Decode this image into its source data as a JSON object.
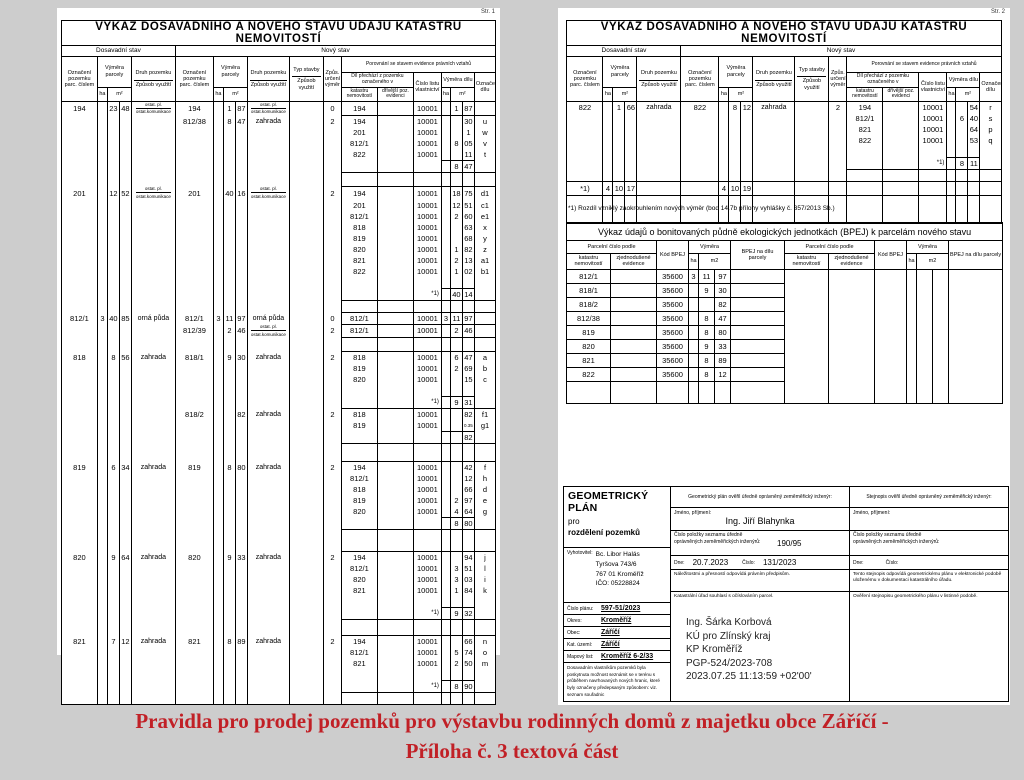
{
  "background": "#cdcdcd",
  "vh": {
    "title": "VÝKAZ DOSAVADNÍHO A NOVÉHO STAVU ÚDAJŮ KATASTRU NEMOVITOSTÍ",
    "dosavadni": "Dosavadní stav",
    "novy": "Nový stav",
    "ozn_parc": "Označení pozemku parc. číslem",
    "vymera_parcely": "Výměra parcely",
    "druh_pozemku": "Druh pozemku",
    "zpusob_vyuziti": "Způsob využití",
    "typ_stavby": "Typ stavby",
    "zpus_urceni": "Způs. určení výměr",
    "porovnani": "Porovnání se stavem evidence právních vztahů",
    "dil_prechazi": "Díl přechází z pozemku označeného v",
    "katastru": "katastru nemovitostí",
    "drivejsi": "dřívější poz. evidenci",
    "cislo_listu": "Číslo listu vlastnictví",
    "vymera_dilu": "Výměra dílu",
    "oznaceni_dilu": "Označení dílu",
    "ha": "ha",
    "m2": "m²"
  },
  "page1": {
    "page_label": "Str. 1",
    "filler": 8,
    "groups": [
      {
        "old": {
          "p": "194",
          "ha": "",
          "m2a": "23",
          "m2b": "48",
          "druh": "ostat. pl.",
          "druh2": "ostat.komunikace"
        },
        "subs": [
          {
            "p": "194",
            "ha": "",
            "m2a": "1",
            "m2b": "87",
            "druh": "ostat. pl.",
            "druh2": "ostat.komunikace",
            "typ": "",
            "zpus": "0",
            "dily": [
              {
                "kn": "194",
                "de": "",
                "lv": "10001",
                "ha": "",
                "m2a": "1",
                "m2b": "87",
                "ozn": ""
              }
            ],
            "sum": null
          },
          {
            "p": "812/38",
            "ha": "",
            "m2a": "8",
            "m2b": "47",
            "druh": "zahrada",
            "druh2": "",
            "typ": "",
            "zpus": "2",
            "dily": [
              {
                "kn": "194",
                "de": "",
                "lv": "10001",
                "ha": "",
                "m2a": "",
                "m2b": "30",
                "ozn": "u"
              },
              {
                "kn": "201",
                "de": "",
                "lv": "10001",
                "ha": "",
                "m2a": "",
                "m2b": "1",
                "ozn": "w"
              },
              {
                "kn": "812/1",
                "de": "",
                "lv": "10001",
                "ha": "",
                "m2a": "8",
                "m2b": "05",
                "ozn": "v"
              },
              {
                "kn": "822",
                "de": "",
                "lv": "10001",
                "ha": "",
                "m2a": "",
                "m2b": "11",
                "ozn": "t"
              }
            ],
            "sum": {
              "label": "",
              "ha": "",
              "m2a": "8",
              "m2b": "47"
            }
          }
        ],
        "gap_after": 14
      },
      {
        "old": {
          "p": "201",
          "ha": "",
          "m2a": "12",
          "m2b": "52",
          "druh": "ostat. pl.",
          "druh2": "ostat.komunikace"
        },
        "subs": [
          {
            "p": "201",
            "ha": "",
            "m2a": "40",
            "m2b": "16",
            "druh": "ostat. pl.",
            "druh2": "ostat.komunikace",
            "typ": "",
            "zpus": "2",
            "dily": [
              {
                "kn": "194",
                "de": "",
                "lv": "10001",
                "ha": "",
                "m2a": "18",
                "m2b": "75",
                "ozn": "d1"
              },
              {
                "kn": "201",
                "de": "",
                "lv": "10001",
                "ha": "",
                "m2a": "12",
                "m2b": "51",
                "ozn": "c1"
              },
              {
                "kn": "812/1",
                "de": "",
                "lv": "10001",
                "ha": "",
                "m2a": "2",
                "m2b": "60",
                "ozn": "e1"
              },
              {
                "kn": "818",
                "de": "",
                "lv": "10001",
                "ha": "",
                "m2a": "",
                "m2b": "63",
                "ozn": "x"
              },
              {
                "kn": "819",
                "de": "",
                "lv": "10001",
                "ha": "",
                "m2a": "",
                "m2b": "68",
                "ozn": "y"
              },
              {
                "kn": "820",
                "de": "",
                "lv": "10001",
                "ha": "",
                "m2a": "1",
                "m2b": "82",
                "ozn": "z"
              },
              {
                "kn": "821",
                "de": "",
                "lv": "10001",
                "ha": "",
                "m2a": "2",
                "m2b": "13",
                "ozn": "a1"
              },
              {
                "kn": "822",
                "de": "",
                "lv": "10001",
                "ha": "",
                "m2a": "1",
                "m2b": "02",
                "ozn": "b1"
              }
            ],
            "sum": {
              "label": "*1)",
              "ha": "",
              "m2a": "40",
              "m2b": "14"
            }
          }
        ],
        "gap_after": 10
      },
      {
        "old": {
          "p": "812/1",
          "ha": "3",
          "m2a": "40",
          "m2b": "85",
          "druh": "orná půda",
          "druh2": ""
        },
        "subs": [
          {
            "p": "812/1",
            "ha": "3",
            "m2a": "11",
            "m2b": "97",
            "druh": "orná půda",
            "druh2": "",
            "typ": "",
            "zpus": "0",
            "dily": [
              {
                "kn": "812/1",
                "de": "",
                "lv": "10001",
                "ha": "3",
                "m2a": "11",
                "m2b": "97",
                "ozn": ""
              }
            ],
            "sum": null
          },
          {
            "p": "812/39",
            "ha": "",
            "m2a": "2",
            "m2b": "46",
            "druh": "ostat. pl.",
            "druh2": "ostat.komunikace",
            "typ": "",
            "zpus": "2",
            "dily": [
              {
                "kn": "812/1",
                "de": "",
                "lv": "10001",
                "ha": "",
                "m2a": "2",
                "m2b": "46",
                "ozn": ""
              }
            ],
            "sum": null
          }
        ],
        "gap_after": 14
      },
      {
        "old": {
          "p": "818",
          "ha": "",
          "m2a": "8",
          "m2b": "56",
          "druh": "zahrada",
          "druh2": ""
        },
        "subs": [
          {
            "p": "818/1",
            "ha": "",
            "m2a": "9",
            "m2b": "30",
            "druh": "zahrada",
            "druh2": "",
            "typ": "",
            "zpus": "2",
            "dily": [
              {
                "kn": "818",
                "de": "",
                "lv": "10001",
                "ha": "",
                "m2a": "6",
                "m2b": "47",
                "ozn": "a"
              },
              {
                "kn": "819",
                "de": "",
                "lv": "10001",
                "ha": "",
                "m2a": "2",
                "m2b": "69",
                "ozn": "b"
              },
              {
                "kn": "820",
                "de": "",
                "lv": "10001",
                "ha": "",
                "m2a": "",
                "m2b": "15",
                "ozn": "c"
              }
            ],
            "sum": {
              "label": "*1)",
              "ha": "",
              "m2a": "9",
              "m2b": "31"
            }
          },
          {
            "p": "818/2",
            "ha": "",
            "m2a": "",
            "m2b": "82",
            "druh": "zahrada",
            "druh2": "",
            "typ": "",
            "zpus": "2",
            "dily": [
              {
                "kn": "818",
                "de": "",
                "lv": "10001",
                "ha": "",
                "m2a": "",
                "m2b": "82",
                "ozn": "f1"
              },
              {
                "kn": "819",
                "de": "",
                "lv": "10001",
                "ha": "",
                "m2a": "",
                "m2b": "0.35",
                "ozn": "g1"
              }
            ],
            "sum": {
              "label": "",
              "ha": "",
              "m2a": "",
              "m2b": "82"
            }
          }
        ],
        "gap_after": 18
      },
      {
        "old": {
          "p": "819",
          "ha": "",
          "m2a": "6",
          "m2b": "34",
          "druh": "zahrada",
          "druh2": ""
        },
        "subs": [
          {
            "p": "819",
            "ha": "",
            "m2a": "8",
            "m2b": "80",
            "druh": "zahrada",
            "druh2": "",
            "typ": "",
            "zpus": "2",
            "dily": [
              {
                "kn": "194",
                "de": "",
                "lv": "10001",
                "ha": "",
                "m2a": "",
                "m2b": "42",
                "ozn": "f"
              },
              {
                "kn": "812/1",
                "de": "",
                "lv": "10001",
                "ha": "",
                "m2a": "",
                "m2b": "12",
                "ozn": "h"
              },
              {
                "kn": "818",
                "de": "",
                "lv": "10001",
                "ha": "",
                "m2a": "",
                "m2b": "66",
                "ozn": "d"
              },
              {
                "kn": "819",
                "de": "",
                "lv": "10001",
                "ha": "",
                "m2a": "2",
                "m2b": "97",
                "ozn": "e"
              },
              {
                "kn": "820",
                "de": "",
                "lv": "10001",
                "ha": "",
                "m2a": "4",
                "m2b": "64",
                "ozn": "g"
              }
            ],
            "sum": {
              "label": "",
              "ha": "",
              "m2a": "8",
              "m2b": "80"
            }
          }
        ],
        "gap_after": 22
      },
      {
        "old": {
          "p": "820",
          "ha": "",
          "m2a": "9",
          "m2b": "64",
          "druh": "zahrada",
          "druh2": ""
        },
        "subs": [
          {
            "p": "820",
            "ha": "",
            "m2a": "9",
            "m2b": "33",
            "druh": "zahrada",
            "druh2": "",
            "typ": "",
            "zpus": "2",
            "dily": [
              {
                "kn": "194",
                "de": "",
                "lv": "10001",
                "ha": "",
                "m2a": "",
                "m2b": "94",
                "ozn": "j"
              },
              {
                "kn": "812/1",
                "de": "",
                "lv": "10001",
                "ha": "",
                "m2a": "3",
                "m2b": "51",
                "ozn": "l"
              },
              {
                "kn": "820",
                "de": "",
                "lv": "10001",
                "ha": "",
                "m2a": "3",
                "m2b": "03",
                "ozn": "i"
              },
              {
                "kn": "821",
                "de": "",
                "lv": "10001",
                "ha": "",
                "m2a": "1",
                "m2b": "84",
                "ozn": "k"
              }
            ],
            "sum": {
              "label": "*1)",
              "ha": "",
              "m2a": "9",
              "m2b": "32"
            }
          }
        ],
        "gap_after": 16
      },
      {
        "old": {
          "p": "821",
          "ha": "",
          "m2a": "7",
          "m2b": "12",
          "druh": "zahrada",
          "druh2": ""
        },
        "subs": [
          {
            "p": "821",
            "ha": "",
            "m2a": "8",
            "m2b": "89",
            "druh": "zahrada",
            "druh2": "",
            "typ": "",
            "zpus": "2",
            "dily": [
              {
                "kn": "194",
                "de": "",
                "lv": "10001",
                "ha": "",
                "m2a": "",
                "m2b": "66",
                "ozn": "n"
              },
              {
                "kn": "812/1",
                "de": "",
                "lv": "10001",
                "ha": "",
                "m2a": "5",
                "m2b": "74",
                "ozn": "o"
              },
              {
                "kn": "821",
                "de": "",
                "lv": "10001",
                "ha": "",
                "m2a": "2",
                "m2b": "50",
                "ozn": "m"
              }
            ],
            "sum": {
              "label": "*1)",
              "ha": "",
              "m2a": "8",
              "m2b": "90"
            }
          }
        ],
        "gap_after": 0
      }
    ]
  },
  "page2": {
    "page_label": "Str. 2",
    "filler": 28,
    "footnote": "*1) Rozdíl vzniklý zaokrouhlením nových výměr (bod 14.7b přílohy vyhlášky č. 357/2013 Sb.)",
    "groups": [
      {
        "old": {
          "p": "822",
          "ha": "",
          "m2a": "1",
          "m2b": "66",
          "druh": "zahrada",
          "druh2": ""
        },
        "subs": [
          {
            "p": "822",
            "ha": "",
            "m2a": "8",
            "m2b": "12",
            "druh": "zahrada",
            "druh2": "",
            "typ": "",
            "zpus": "2",
            "dily": [
              {
                "kn": "194",
                "de": "",
                "lv": "10001",
                "ha": "",
                "m2a": "",
                "m2b": "54",
                "ozn": "r"
              },
              {
                "kn": "812/1",
                "de": "",
                "lv": "10001",
                "ha": "",
                "m2a": "6",
                "m2b": "40",
                "ozn": "s"
              },
              {
                "kn": "821",
                "de": "",
                "lv": "10001",
                "ha": "",
                "m2a": "",
                "m2b": "64",
                "ozn": "p"
              },
              {
                "kn": "822",
                "de": "",
                "lv": "10001",
                "ha": "",
                "m2a": "",
                "m2b": "53",
                "ozn": "q"
              }
            ],
            "sum": {
              "label": "*1)",
              "ha": "",
              "m2a": "8",
              "m2b": "11"
            }
          }
        ],
        "gap_after": 4
      }
    ],
    "total": {
      "label": "*1)",
      "old": {
        "ha": "4",
        "m2a": "10",
        "m2b": "17"
      },
      "new": {
        "ha": "4",
        "m2a": "10",
        "m2b": "19"
      }
    }
  },
  "bpej": {
    "title": "Výkaz údajů o bonitovaných půdně ekologických jednotkách (BPEJ) k parcelám nového stavu",
    "parc_cislo": "Parcelní číslo podle",
    "katastru": "katastru nemovitostí",
    "zjednodusene": "zjednodušené evidence",
    "kod": "Kód BPEJ",
    "vymera": "Výměra",
    "ha": "ha",
    "m2": "m2",
    "bpej_dil": "BPEJ na dílu parcely",
    "rows": [
      {
        "kn": "812/1",
        "ze": "",
        "kod": "35600",
        "ha": "3",
        "m2a": "11",
        "m2b": "97",
        "bpej": ""
      },
      {
        "kn": "818/1",
        "ze": "",
        "kod": "35600",
        "ha": "",
        "m2a": "9",
        "m2b": "30",
        "bpej": ""
      },
      {
        "kn": "818/2",
        "ze": "",
        "kod": "35600",
        "ha": "",
        "m2a": "",
        "m2b": "82",
        "bpej": ""
      },
      {
        "kn": "812/38",
        "ze": "",
        "kod": "35600",
        "ha": "",
        "m2a": "8",
        "m2b": "47",
        "bpej": ""
      },
      {
        "kn": "819",
        "ze": "",
        "kod": "35600",
        "ha": "",
        "m2a": "8",
        "m2b": "80",
        "bpej": ""
      },
      {
        "kn": "820",
        "ze": "",
        "kod": "35600",
        "ha": "",
        "m2a": "9",
        "m2b": "33",
        "bpej": ""
      },
      {
        "kn": "821",
        "ze": "",
        "kod": "35600",
        "ha": "",
        "m2a": "8",
        "m2b": "89",
        "bpej": ""
      },
      {
        "kn": "822",
        "ze": "",
        "kod": "35600",
        "ha": "",
        "m2a": "8",
        "m2b": "12",
        "bpej": ""
      }
    ]
  },
  "gp": {
    "title1": "GEOMETRICKÝ PLÁN",
    "title2": "pro",
    "title3": "rozdělení pozemků",
    "vyhotovitel_label": "Vyhotovitel:",
    "vyhotovitel": [
      "Bc. Libor Halás",
      "Tyršova 743/6",
      "767 01 Kroměříž",
      "IČO: 05228824"
    ],
    "fields": [
      {
        "label": "Číslo plánu:",
        "value": "597-51/2023"
      },
      {
        "label": "Okres:",
        "value": "Kroměříž"
      },
      {
        "label": "Obec:",
        "value": "Záříčí"
      },
      {
        "label": "Kat. území:",
        "value": "Záříčí"
      },
      {
        "label": "Mapový list:",
        "value": "Kroměříž 6-2/33"
      }
    ],
    "note": "Dosavadním vlastníkům pozemků byla poskytnuta možnost seznámit se v terénu s průběhem navrhovaných nových hranic, které byly označeny předepsaným způsobem: viz. seznam souřadnic",
    "jmeno_label": "Jméno, příjmení:",
    "cislo_polozky_label": "Číslo položky seznamu úředně oprávněných zeměměřických inženýrů:",
    "dne_label": "Dne:",
    "cislo_label": "Číslo:",
    "col2": {
      "header": "Geometrický plán ověřil úředně oprávněný zeměměřický inženýr:",
      "jmeno": "Ing. Jiří Blahynka",
      "cislo_polozky": "190/95",
      "dne": "20.7.2023",
      "cislo": "131/2023",
      "statement": "Náležitostmi a přesností odpovídá právním předpisům.",
      "souhlas": "Katastrální úřad souhlasí s očíslováním parcel."
    },
    "col3": {
      "header": "Stejnopis ověřil úředně oprávněný zeměměřický inženýr:",
      "jmeno": "",
      "cislo_polozky": "",
      "dne": "",
      "cislo": "",
      "statement": "Tento stejnopis odpovídá geometrickému plánu v elektronické podobě uloženému v dokumentaci katastrálního úřadu.",
      "overeni": "Ověření stejnopisu geometrického plánu v listinné podobě."
    },
    "stamp": [
      "Ing. Šárka Korbová",
      "KÚ pro Zlínský kraj",
      "KP Kroměříž",
      "PGP-524/2023-708",
      "2023.07.25 11:13:59 +02'00'"
    ]
  },
  "caption": {
    "line1": "Pravidla pro prodej pozemků pro výstavbu rodinných domů z majetku obce Záříčí -",
    "line2": "Příloha č. 3 textová část",
    "color": "#c12026"
  }
}
